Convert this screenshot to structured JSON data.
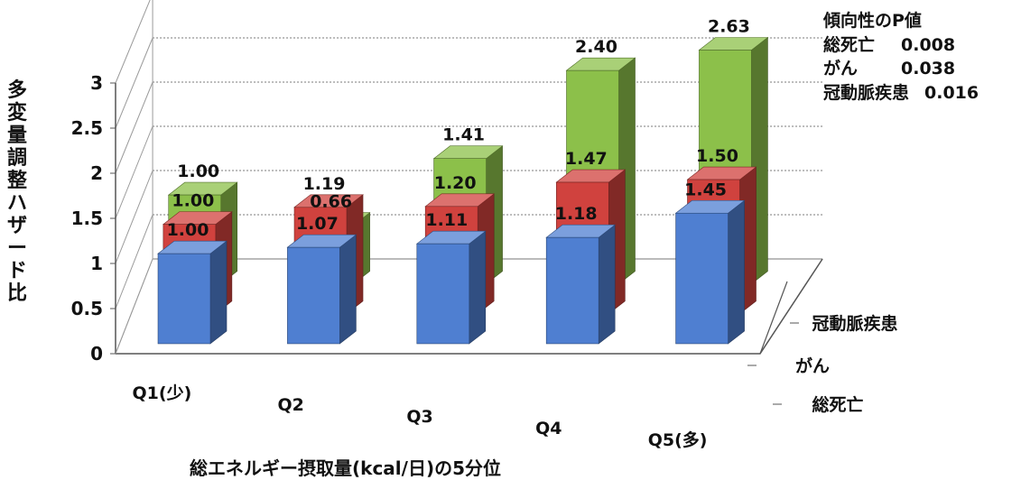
{
  "chart_data": {
    "type": "bar",
    "style": "3d-clustered",
    "categories": [
      "Q1(少)",
      "Q2",
      "Q3",
      "Q4",
      "Q5(多)"
    ],
    "series": [
      {
        "name": "総死亡",
        "values": [
          1.0,
          1.07,
          1.11,
          1.18,
          1.45
        ],
        "labels": [
          "1.00",
          "1.07",
          "1.11",
          "1.18",
          "1.45"
        ],
        "color": "#4f7fd1"
      },
      {
        "name": "がん",
        "values": [
          1.0,
          1.19,
          1.2,
          1.47,
          1.5
        ],
        "labels": [
          "1.00",
          "1.19",
          "1.20",
          "1.47",
          "1.50"
        ],
        "color": "#d0423e"
      },
      {
        "name": "冠動脈疾患",
        "values": [
          1.0,
          0.66,
          1.41,
          2.4,
          2.63
        ],
        "labels": [
          "1.00",
          "0.66",
          "1.41",
          "2.40",
          "2.63"
        ],
        "color": "#8cc04a"
      }
    ],
    "y_ticks": [
      "0",
      "0.5",
      "1",
      "1.5",
      "2",
      "2.5",
      "3"
    ],
    "ylim": [
      0,
      3
    ],
    "xlabel": "総エネルギー摂取量(kcal/日)の5分位",
    "ylabel": "多変量調整ハザード比",
    "grid": true
  },
  "annotation": {
    "title": "傾向性のP値",
    "rows": [
      {
        "name": "総死亡",
        "value": "0.008"
      },
      {
        "name": "がん",
        "value": "0.038"
      },
      {
        "name": "冠動脈疾患",
        "value": "0.016"
      }
    ]
  }
}
